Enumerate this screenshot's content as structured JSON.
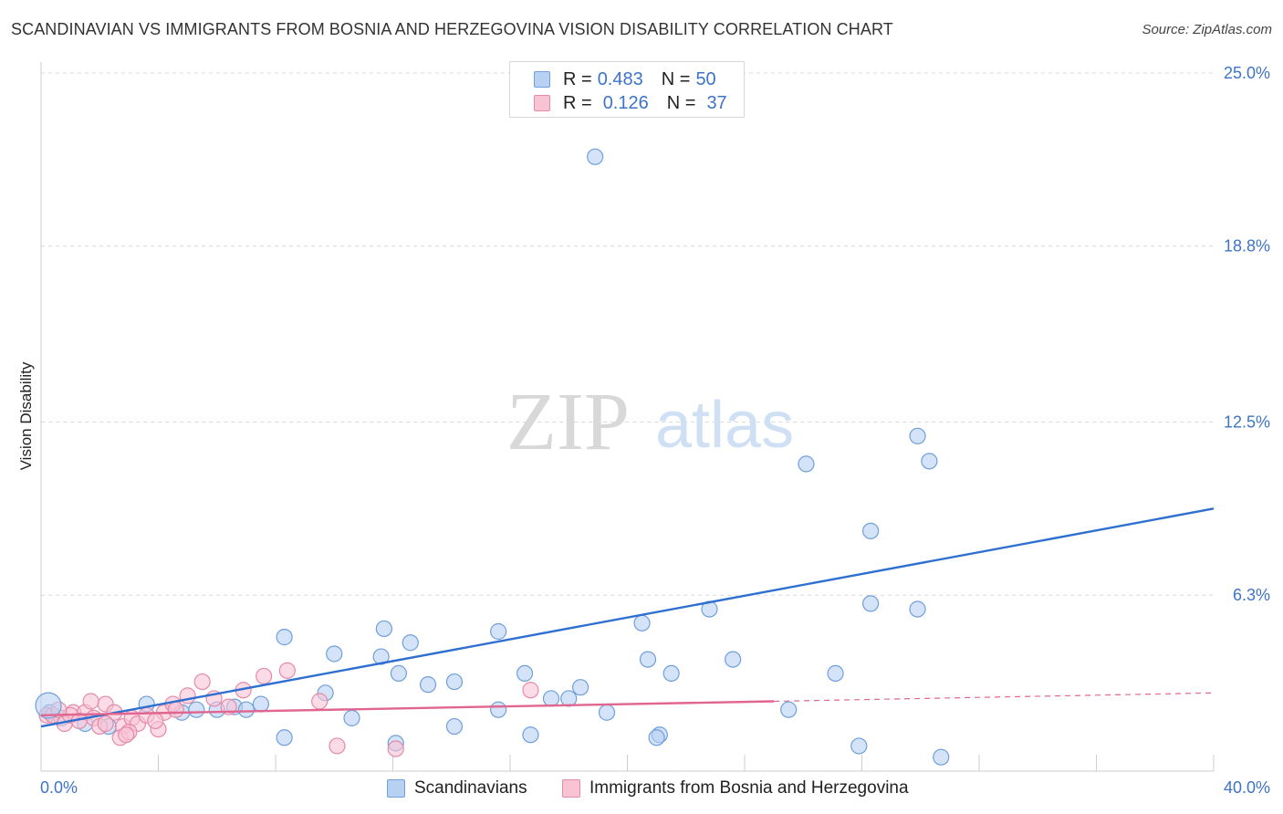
{
  "title": "SCANDINAVIAN VS IMMIGRANTS FROM BOSNIA AND HERZEGOVINA VISION DISABILITY CORRELATION CHART",
  "source": "Source: ZipAtlas.com",
  "watermark": {
    "zip": "ZIP",
    "atlas": "atlas"
  },
  "legend": {
    "rows": [
      {
        "r_label": "R =",
        "r_value": "0.483",
        "n_label": "N =",
        "n_value": "50"
      },
      {
        "r_label": "R =",
        "r_value": "0.126",
        "n_label": "N =",
        "n_value": "37"
      }
    ]
  },
  "colors": {
    "blue_fill": "#b8d0f2",
    "blue_stroke": "#6f9fdc",
    "blue_line": "#2f6fd0",
    "pink_fill": "#f8c3d3",
    "pink_stroke": "#e58aa8",
    "pink_line": "#e0658f",
    "tick_text": "#3d74c7",
    "grid": "#d9d9d9"
  },
  "chart_data": {
    "type": "scatter",
    "title": "SCANDINAVIAN VS IMMIGRANTS FROM BOSNIA AND HERZEGOVINA VISION DISABILITY CORRELATION CHART",
    "xlabel": "",
    "ylabel": "Vision Disability",
    "xlim": [
      0,
      40
    ],
    "ylim": [
      0,
      25.0
    ],
    "x_tick_labels": [
      "0.0%",
      "40.0%"
    ],
    "y_ticks": [
      6.3,
      12.5,
      18.8,
      25.0
    ],
    "y_tick_labels": [
      "6.3%",
      "12.5%",
      "18.8%",
      "25.0%"
    ],
    "grid": "horizontal dashed",
    "legend_position": "top-center",
    "series": [
      {
        "name": "Scandinavians",
        "points": [
          [
            0.3,
            2.1
          ],
          [
            0.7,
            1.9
          ],
          [
            1.5,
            1.7
          ],
          [
            2.3,
            1.6
          ],
          [
            3.6,
            2.4
          ],
          [
            4.8,
            2.1
          ],
          [
            5.3,
            2.2
          ],
          [
            6.6,
            2.3
          ],
          [
            7.5,
            2.4
          ],
          [
            8.3,
            1.2
          ],
          [
            6.0,
            2.2
          ],
          [
            7.0,
            2.2
          ],
          [
            8.3,
            4.8
          ],
          [
            9.7,
            2.8
          ],
          [
            10.0,
            4.2
          ],
          [
            10.6,
            1.9
          ],
          [
            11.6,
            4.1
          ],
          [
            12.2,
            3.5
          ],
          [
            12.1,
            1.0
          ],
          [
            11.7,
            5.1
          ],
          [
            12.6,
            4.6
          ],
          [
            13.2,
            3.1
          ],
          [
            14.1,
            3.2
          ],
          [
            14.1,
            1.6
          ],
          [
            15.6,
            5.0
          ],
          [
            15.6,
            2.2
          ],
          [
            16.5,
            3.5
          ],
          [
            16.7,
            1.3
          ],
          [
            17.4,
            2.6
          ],
          [
            18.0,
            2.6
          ],
          [
            18.4,
            3.0
          ],
          [
            19.3,
            2.1
          ],
          [
            20.5,
            5.3
          ],
          [
            18.9,
            22.0
          ],
          [
            21.1,
            1.3
          ],
          [
            20.7,
            4.0
          ],
          [
            21.5,
            3.5
          ],
          [
            22.8,
            5.8
          ],
          [
            21.0,
            1.2
          ],
          [
            27.1,
            3.5
          ],
          [
            29.9,
            12.0
          ],
          [
            29.9,
            5.8
          ],
          [
            28.3,
            6.0
          ],
          [
            26.1,
            11.0
          ],
          [
            30.3,
            11.1
          ],
          [
            30.7,
            0.5
          ],
          [
            28.3,
            8.6
          ],
          [
            23.6,
            4.0
          ],
          [
            25.5,
            2.2
          ],
          [
            27.9,
            0.9
          ]
        ]
      },
      {
        "name": "Immigrants from Bosnia and Herzegovina",
        "points": [
          [
            0.2,
            2.0
          ],
          [
            0.4,
            2.0
          ],
          [
            0.8,
            1.7
          ],
          [
            1.1,
            2.1
          ],
          [
            1.5,
            2.1
          ],
          [
            1.8,
            1.9
          ],
          [
            2.0,
            1.6
          ],
          [
            2.2,
            2.4
          ],
          [
            2.5,
            2.1
          ],
          [
            2.8,
            1.6
          ],
          [
            3.1,
            1.9
          ],
          [
            3.3,
            1.7
          ],
          [
            3.6,
            2.0
          ],
          [
            4.0,
            1.5
          ],
          [
            4.2,
            2.1
          ],
          [
            4.5,
            2.4
          ],
          [
            5.0,
            2.7
          ],
          [
            5.5,
            3.2
          ],
          [
            5.9,
            2.6
          ],
          [
            6.4,
            2.3
          ],
          [
            6.9,
            2.9
          ],
          [
            7.6,
            3.4
          ],
          [
            8.4,
            3.6
          ],
          [
            9.5,
            2.5
          ],
          [
            10.1,
            0.9
          ],
          [
            12.1,
            0.8
          ],
          [
            16.7,
            2.9
          ],
          [
            1.0,
            2.0
          ],
          [
            2.7,
            1.2
          ],
          [
            3.9,
            1.8
          ],
          [
            1.3,
            1.8
          ],
          [
            2.2,
            1.7
          ],
          [
            0.6,
            2.2
          ],
          [
            1.7,
            2.5
          ],
          [
            3.0,
            1.4
          ],
          [
            4.6,
            2.2
          ],
          [
            2.9,
            1.3
          ]
        ]
      }
    ],
    "trend_lines": [
      {
        "series": "Scandinavians",
        "x": [
          0,
          40
        ],
        "y": [
          1.6,
          9.4
        ],
        "style": "solid"
      },
      {
        "series": "Immigrants from Bosnia and Herzegovina",
        "x": [
          0,
          25
        ],
        "y": [
          2.0,
          2.5
        ],
        "style": "solid"
      },
      {
        "series": "Immigrants from Bosnia and Herzegovina",
        "x": [
          25,
          40
        ],
        "y": [
          2.5,
          2.8
        ],
        "style": "dashed"
      }
    ]
  }
}
